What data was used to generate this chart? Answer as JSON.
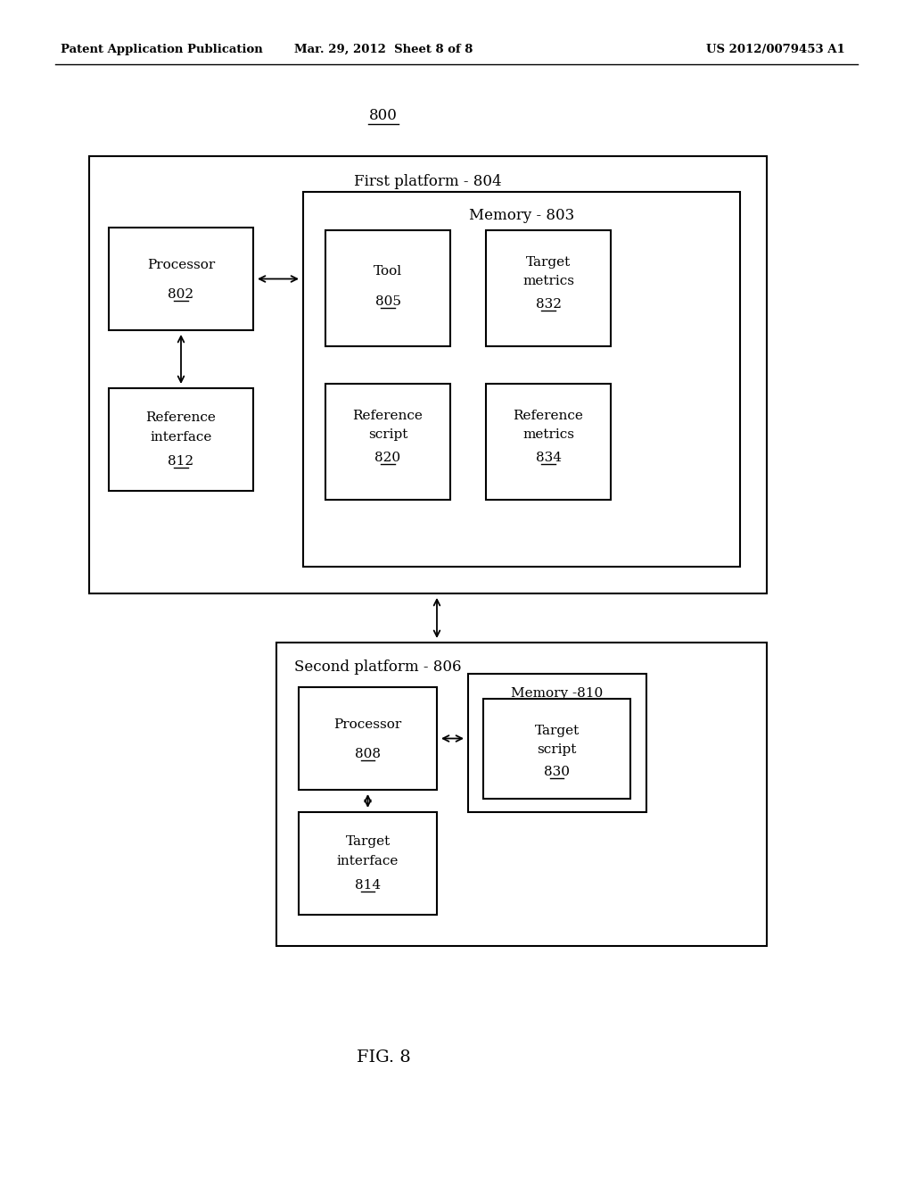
{
  "background_color": "#ffffff",
  "header_left": "Patent Application Publication",
  "header_center": "Mar. 29, 2012  Sheet 8 of 8",
  "header_right": "US 2012/0079453 A1",
  "fig_label": "800",
  "fig_caption": "FIG. 8",
  "first_platform_label": "First platform - 804",
  "memory_label": "Memory - 803",
  "second_platform_label": "Second platform - 806",
  "memory2_label": "Memory -810",
  "box_edge_color": "#000000",
  "text_color": "#000000"
}
